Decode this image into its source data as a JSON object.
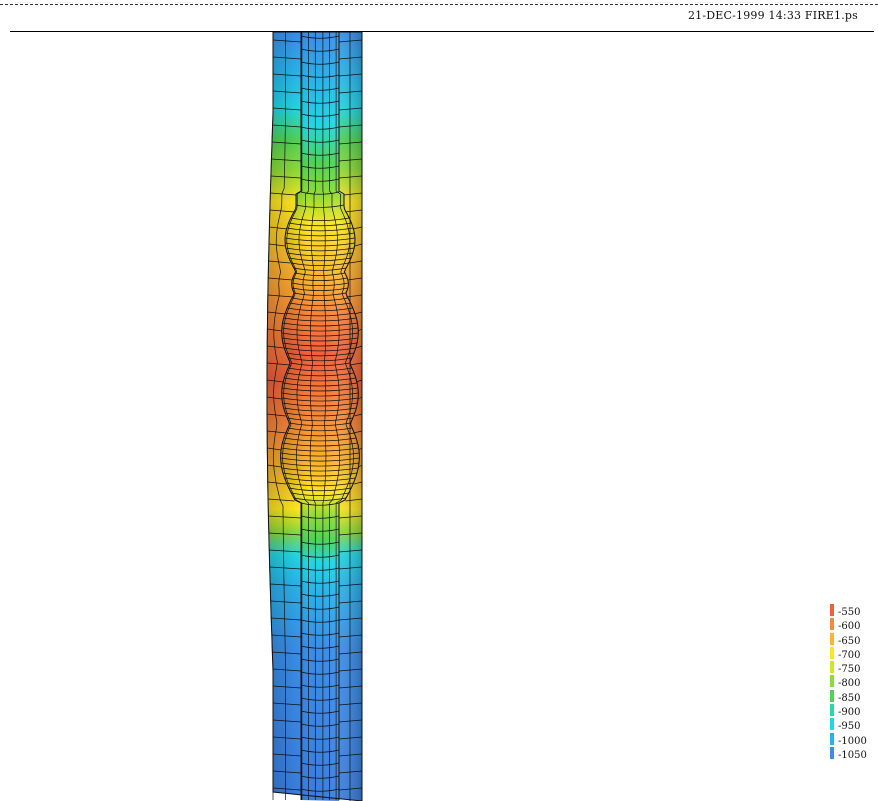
{
  "header": {
    "text": "21-DEC-1999 14:33 FIRE1.ps"
  },
  "contour_legend": {
    "entries": [
      {
        "label": "-550",
        "color": "#f2603a"
      },
      {
        "label": "-600",
        "color": "#f98a38"
      },
      {
        "label": "-650",
        "color": "#fcb52e"
      },
      {
        "label": "-700",
        "color": "#fde720"
      },
      {
        "label": "-750",
        "color": "#cfe82c"
      },
      {
        "label": "-800",
        "color": "#8fdc38"
      },
      {
        "label": "-850",
        "color": "#4fd456"
      },
      {
        "label": "-900",
        "color": "#2ed6a4"
      },
      {
        "label": "-950",
        "color": "#22d7e5"
      },
      {
        "label": "-1000",
        "color": "#2ab2ec"
      },
      {
        "label": "-1050",
        "color": "#3a8ee9"
      }
    ]
  }
}
